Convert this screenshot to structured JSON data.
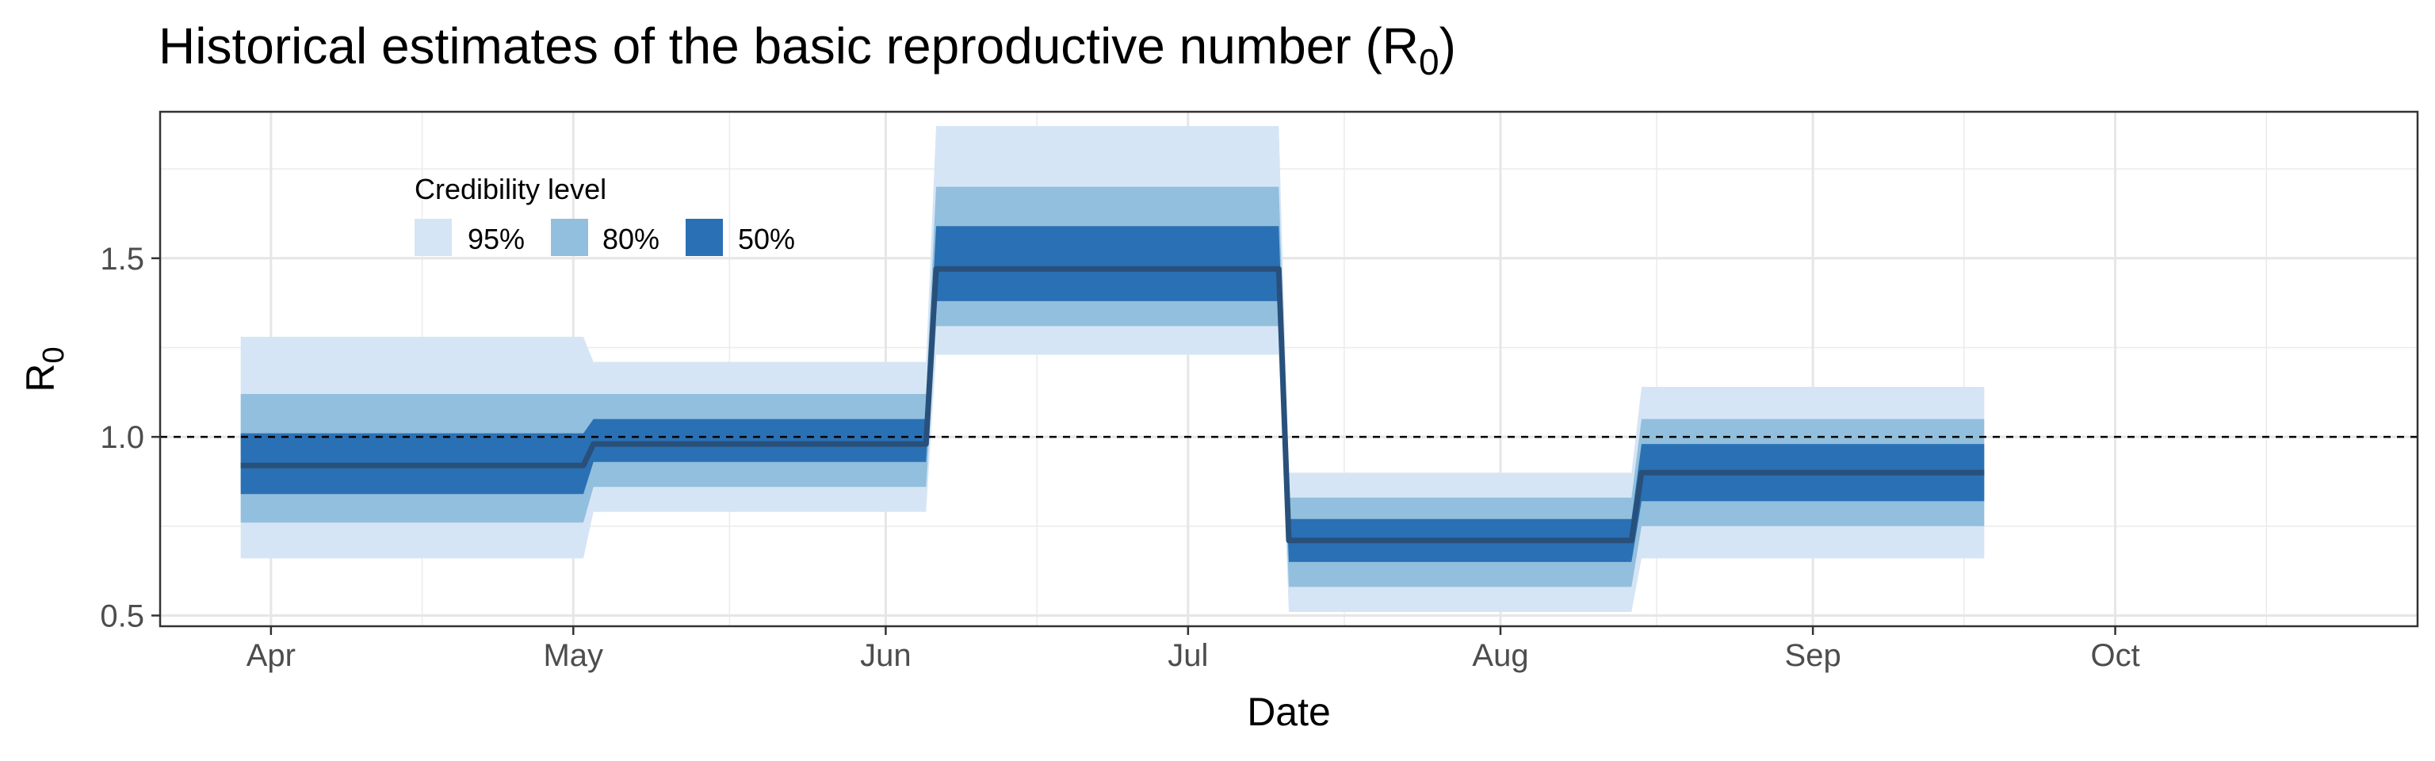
{
  "chart_data": {
    "type": "area",
    "title": {
      "main": "Historical estimates of the basic reproductive number (R",
      "sub": "0",
      "close": ")"
    },
    "xlabel": "Date",
    "ylabel": {
      "main": "R",
      "sub": "0"
    },
    "x_axis": {
      "type": "date",
      "range": [
        "2020-03-21",
        "2020-10-31"
      ],
      "ticks": [
        "2020-04-01",
        "2020-05-01",
        "2020-06-01",
        "2020-07-01",
        "2020-08-01",
        "2020-09-01",
        "2020-10-01"
      ],
      "tick_labels": [
        "Apr",
        "May",
        "Jun",
        "Jul",
        "Aug",
        "Sep",
        "Oct"
      ]
    },
    "y_axis": {
      "range": [
        0.47,
        1.91
      ],
      "ticks": [
        0.5,
        1.0,
        1.5
      ],
      "tick_labels": [
        "0.5",
        "1.0",
        "1.5"
      ]
    },
    "grid": true,
    "reference_line": {
      "y": 1.0,
      "style": "dashed"
    },
    "legend": {
      "title": "Credibility level",
      "placement": "top-left",
      "items": [
        {
          "label": "95%",
          "color": "#d6e5f5"
        },
        {
          "label": "80%",
          "color": "#92bfdd"
        },
        {
          "label": "50%",
          "color": "#2a70b4"
        }
      ]
    },
    "median_color": "#28507a",
    "series": [
      {
        "x": "2020-03-29",
        "median": 0.92,
        "lo95": 0.66,
        "hi95": 1.28,
        "lo80": 0.76,
        "hi80": 1.12,
        "lo50": 0.84,
        "hi50": 1.01
      },
      {
        "x": "2020-05-02",
        "median": 0.92,
        "lo95": 0.66,
        "hi95": 1.28,
        "lo80": 0.76,
        "hi80": 1.12,
        "lo50": 0.84,
        "hi50": 1.01
      },
      {
        "x": "2020-05-03",
        "median": 0.98,
        "lo95": 0.79,
        "hi95": 1.21,
        "lo80": 0.86,
        "hi80": 1.12,
        "lo50": 0.93,
        "hi50": 1.05
      },
      {
        "x": "2020-06-05",
        "median": 0.98,
        "lo95": 0.79,
        "hi95": 1.21,
        "lo80": 0.86,
        "hi80": 1.12,
        "lo50": 0.93,
        "hi50": 1.05
      },
      {
        "x": "2020-06-06",
        "median": 1.47,
        "lo95": 1.23,
        "hi95": 1.87,
        "lo80": 1.31,
        "hi80": 1.7,
        "lo50": 1.38,
        "hi50": 1.59
      },
      {
        "x": "2020-07-10",
        "median": 1.47,
        "lo95": 1.23,
        "hi95": 1.87,
        "lo80": 1.31,
        "hi80": 1.7,
        "lo50": 1.38,
        "hi50": 1.59
      },
      {
        "x": "2020-07-11",
        "median": 0.71,
        "lo95": 0.51,
        "hi95": 0.9,
        "lo80": 0.58,
        "hi80": 0.83,
        "lo50": 0.65,
        "hi50": 0.77
      },
      {
        "x": "2020-08-14",
        "median": 0.71,
        "lo95": 0.51,
        "hi95": 0.9,
        "lo80": 0.58,
        "hi80": 0.83,
        "lo50": 0.65,
        "hi50": 0.77
      },
      {
        "x": "2020-08-15",
        "median": 0.9,
        "lo95": 0.66,
        "hi95": 1.14,
        "lo80": 0.75,
        "hi80": 1.05,
        "lo50": 0.82,
        "hi50": 0.98
      },
      {
        "x": "2020-09-18",
        "median": 0.9,
        "lo95": 0.66,
        "hi95": 1.14,
        "lo80": 0.75,
        "hi80": 1.05,
        "lo50": 0.82,
        "hi50": 0.98
      }
    ]
  }
}
